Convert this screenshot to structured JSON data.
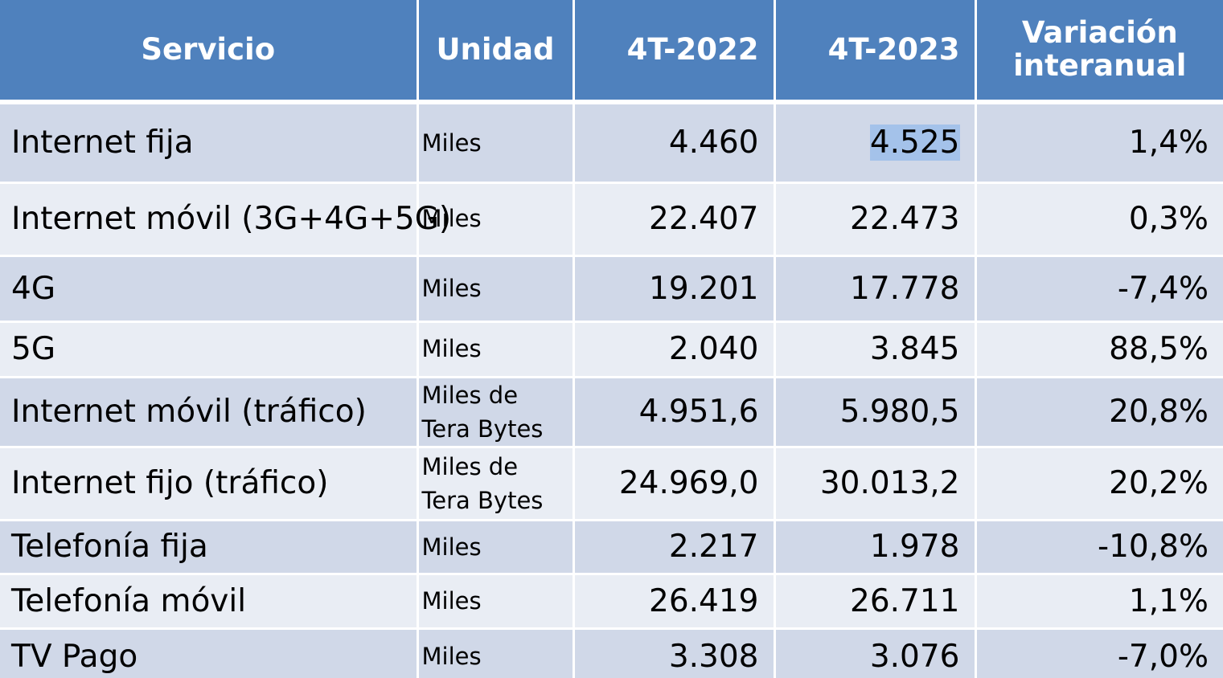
{
  "headers": {
    "servicio": "Servicio",
    "unidad": "Unidad",
    "y2022": "4T-2022",
    "y2023": "4T-2023",
    "variacion": "Variación\ninteranual"
  },
  "rows": [
    {
      "servicio": "Internet fija",
      "unidad": "Miles",
      "v2022": "4.460",
      "v2023": "4.525",
      "variacion": "1,4%"
    },
    {
      "servicio": "Internet móvil (3G+4G+5G)",
      "unidad": "Miles",
      "v2022": "22.407",
      "v2023": "22.473",
      "variacion": "0,3%"
    },
    {
      "servicio": "4G",
      "unidad": "Miles",
      "v2022": "19.201",
      "v2023": "17.778",
      "variacion": "-7,4%"
    },
    {
      "servicio": "5G",
      "unidad": "Miles",
      "v2022": "2.040",
      "v2023": "3.845",
      "variacion": "88,5%"
    },
    {
      "servicio": "Internet móvil (tráfico)",
      "unidad": "Miles de\nTera Bytes",
      "v2022": "4.951,6",
      "v2023": "5.980,5",
      "variacion": "20,8%"
    },
    {
      "servicio": "Internet fijo (tráfico)",
      "unidad": "Miles de\nTera Bytes",
      "v2022": "24.969,0",
      "v2023": "30.013,2",
      "variacion": "20,2%"
    },
    {
      "servicio": "Telefonía fija",
      "unidad": "Miles",
      "v2022": "2.217",
      "v2023": "1.978",
      "variacion": "-10,8%"
    },
    {
      "servicio": "Telefonía móvil",
      "unidad": "Miles",
      "v2022": "26.419",
      "v2023": "26.711",
      "variacion": "1,1%"
    },
    {
      "servicio": "TV Pago",
      "unidad": "Miles",
      "v2022": "3.308",
      "v2023": "3.076",
      "variacion": "-7,0%"
    }
  ],
  "colors": {
    "header_bg": "#4f81bd",
    "row_dark": "#d0d8e8",
    "row_light": "#e9edf4",
    "selection": "#a4c2ea"
  }
}
